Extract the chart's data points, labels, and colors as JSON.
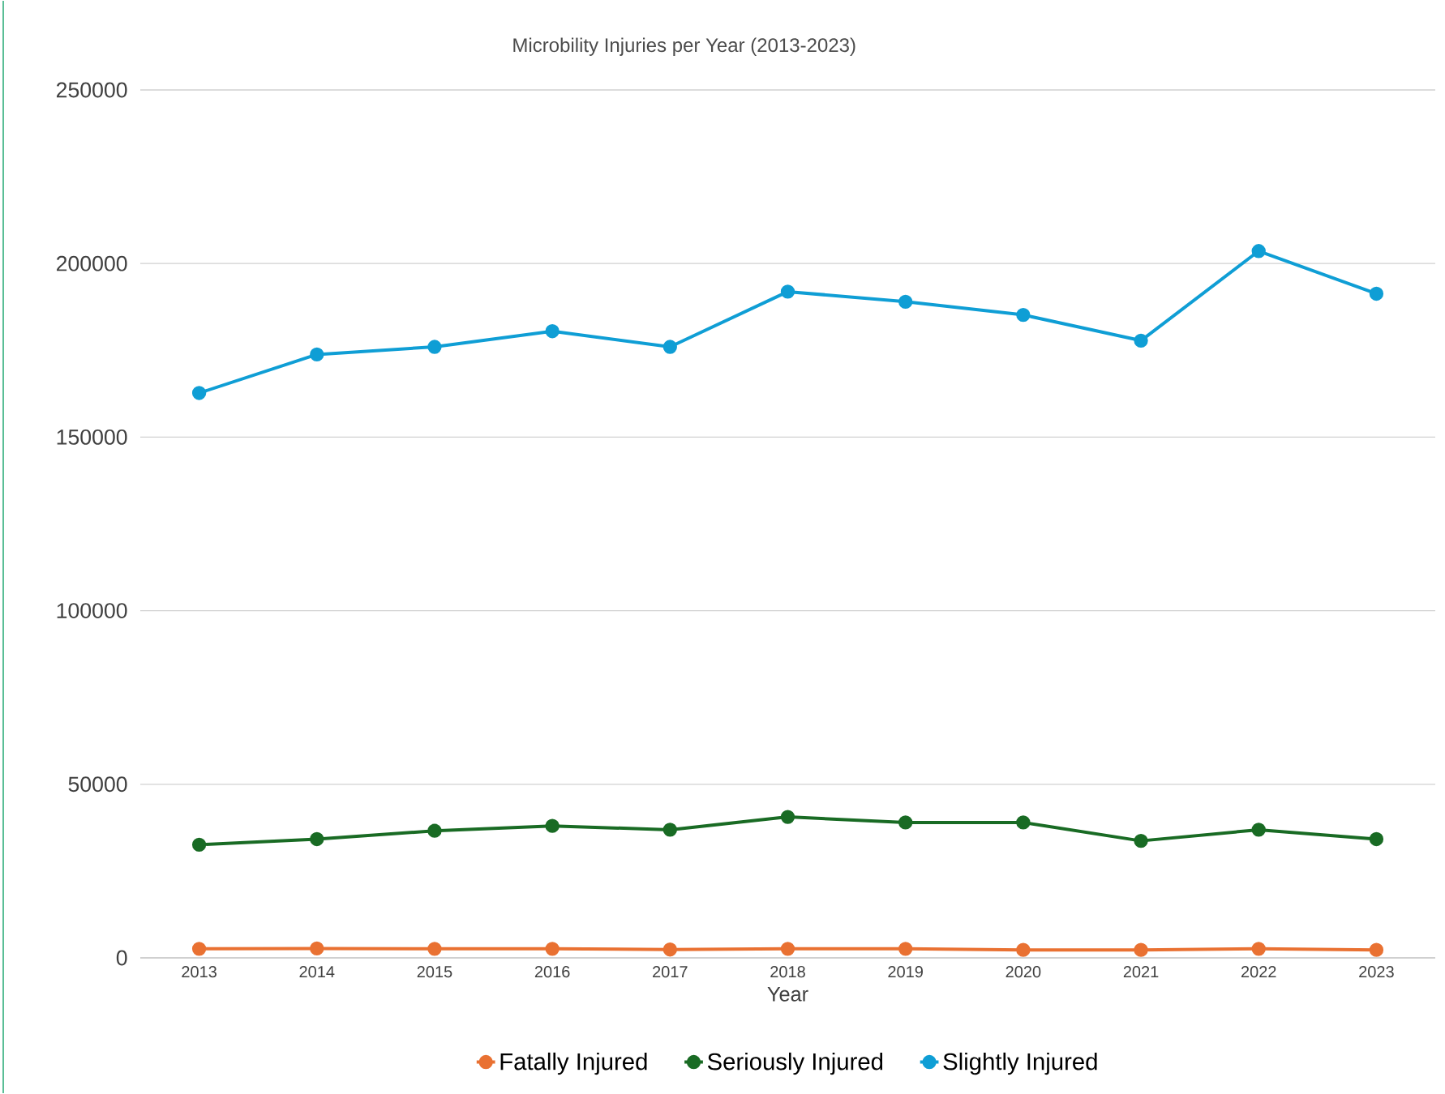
{
  "chart_data": {
    "type": "line",
    "title": "Microbility Injuries per Year (2013-2023)",
    "xlabel": "Year",
    "categories": [
      "2013",
      "2014",
      "2015",
      "2016",
      "2017",
      "2018",
      "2019",
      "2020",
      "2021",
      "2022",
      "2023"
    ],
    "series": [
      {
        "name": "Fatally Injured",
        "color": "#e97132",
        "values": [
          2600,
          2700,
          2600,
          2600,
          2400,
          2600,
          2600,
          2300,
          2300,
          2600,
          2300
        ]
      },
      {
        "name": "Seriously Injured",
        "color": "#196b24",
        "values": [
          32600,
          34200,
          36600,
          38000,
          36900,
          40600,
          39000,
          39000,
          33700,
          36900,
          34200
        ]
      },
      {
        "name": "Slightly Injured",
        "color": "#0f9ed5",
        "values": [
          162700,
          173800,
          176000,
          180500,
          176000,
          191900,
          189000,
          185200,
          177800,
          203600,
          191300
        ]
      }
    ],
    "ylim": [
      0,
      250000
    ],
    "yticks": [
      0,
      50000,
      100000,
      150000,
      200000,
      250000
    ],
    "grid": "y",
    "legend": "bottom",
    "marker": "circle",
    "line_style": "solid"
  }
}
